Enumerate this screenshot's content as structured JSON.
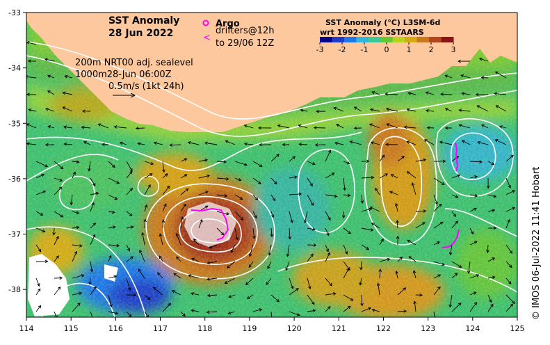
{
  "title": {
    "line1": "SST Anomaly",
    "line2": "28 Jun 2022"
  },
  "legend": {
    "argo_label": "Argo",
    "argo_color": "#ff00ff",
    "drifters_line1": "drifters@12h",
    "drifters_line2": "to 29/06 12Z",
    "drifter_symbol": "<"
  },
  "contour_info": {
    "line1": "200m  NRT00 adj. sealevel",
    "line2": "1000m28-Jun 06:00Z",
    "scale_label": "0.5m/s (1kt 24h)"
  },
  "colorbar": {
    "title_line1": "SST Anomaly (°C) L3SM-6d",
    "title_line2": "wrt 1992-2016 SSTAARS",
    "ticks": [
      "-3",
      "-2",
      "-1",
      "0",
      "1",
      "2",
      "3"
    ],
    "colors": [
      "#00008b",
      "#1e3cc8",
      "#1e78e6",
      "#32b4dc",
      "#3cc896",
      "#64c832",
      "#b4d21e",
      "#d2aa14",
      "#c8781e",
      "#b4461e",
      "#8b1414"
    ]
  },
  "axes": {
    "x_ticks": [
      "114",
      "115",
      "116",
      "117",
      "118",
      "119",
      "120",
      "121",
      "122",
      "123",
      "124",
      "125"
    ],
    "y_ticks": [
      "-33",
      "-34",
      "-35",
      "-36",
      "-37",
      "-38"
    ],
    "lon_range": [
      114,
      125
    ],
    "lat_range": [
      -33,
      -38.5
    ]
  },
  "colors": {
    "land": "#fdc89e",
    "contour": "#ffffff",
    "arrow": "#000000"
  },
  "credit": "© IMOS 06-Jul-2022 11:41 Hobart"
}
